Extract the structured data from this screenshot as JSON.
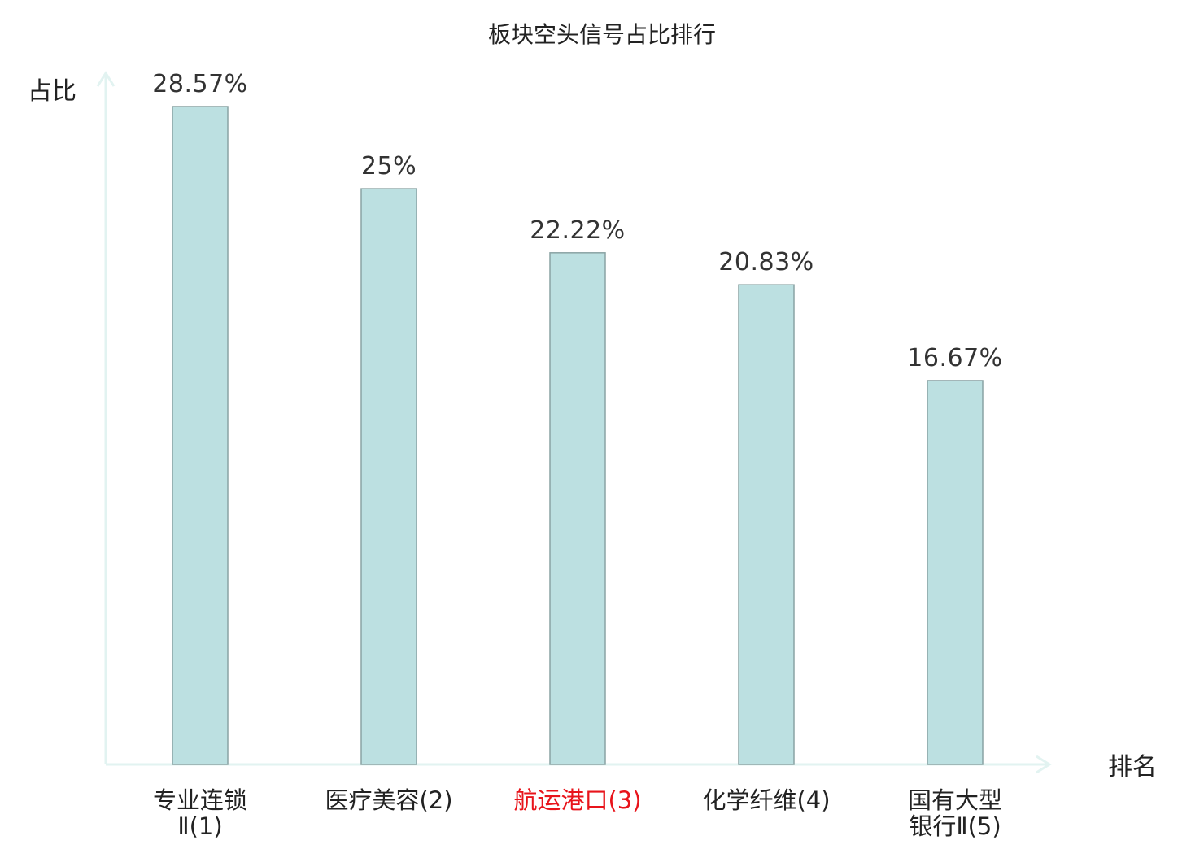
{
  "chart_data": {
    "type": "bar",
    "title": "板块空头信号占比排行",
    "ylabel": "占比",
    "xlabel": "排名",
    "categories": [
      [
        "专业连锁",
        "Ⅱ(1)"
      ],
      [
        "医疗美容(2)"
      ],
      [
        "航运港口(3)"
      ],
      [
        "化学纤维(4)"
      ],
      [
        "国有大型",
        "银行Ⅱ(5)"
      ]
    ],
    "values": [
      28.57,
      25,
      22.22,
      20.83,
      16.67
    ],
    "value_labels": [
      "28.57%",
      "25%",
      "22.22%",
      "20.83%",
      "16.67%"
    ],
    "highlight_index": 2,
    "ylim": [
      0,
      28.57
    ],
    "grid": false,
    "colors": {
      "bar_fill": "#bce0e1",
      "bar_stroke": "#8aa3a4",
      "axis": "#e2f3f1",
      "text": "#222222",
      "value_label": "#333333",
      "highlight": "#e8141b"
    }
  }
}
